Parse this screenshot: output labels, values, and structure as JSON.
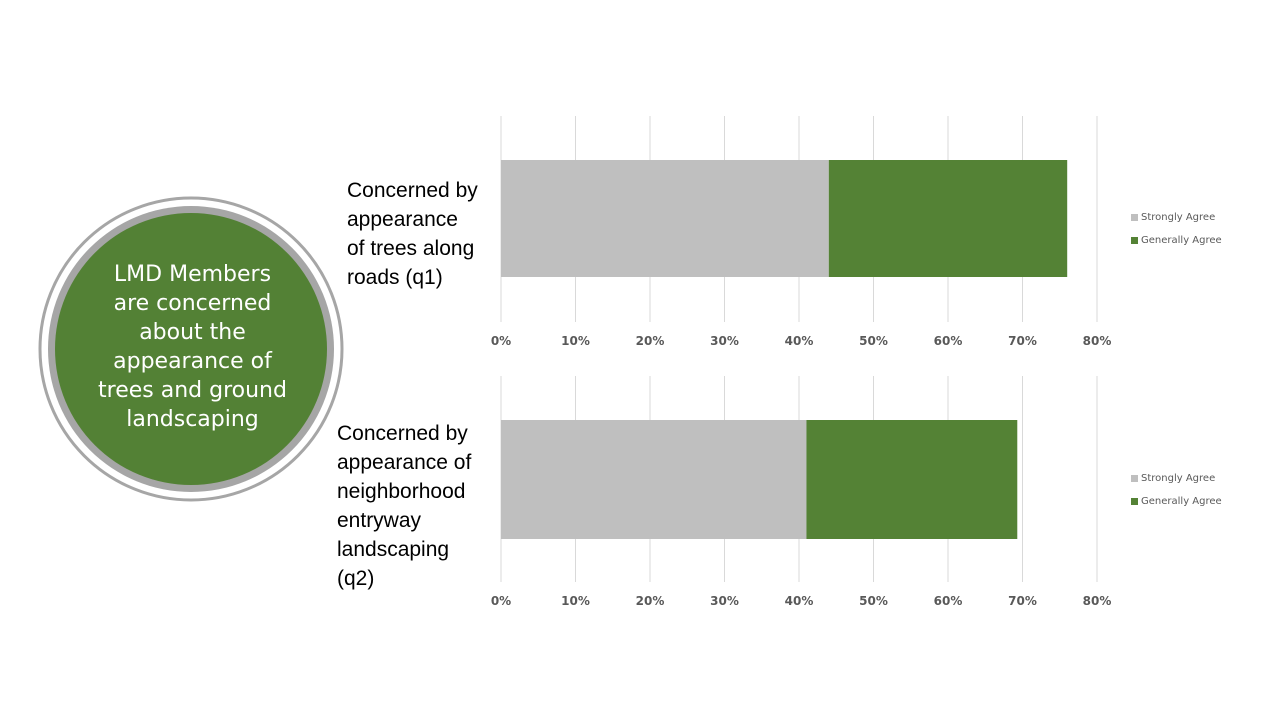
{
  "summary": {
    "text": "LMD Members\nare concerned\nabout the\nappearance of\ntrees and ground\nlandscaping"
  },
  "colors": {
    "circle_fill": "#538135",
    "circle_ring": "#a6a6a6",
    "strongly": "#bfbfbf",
    "generally": "#548235",
    "grid": "#d9d9d9"
  },
  "chart_data": [
    {
      "type": "bar",
      "orientation": "horizontal",
      "stacked": true,
      "category_label": "Concerned by\nappearance\nof trees along\nroads (q1)",
      "series": [
        {
          "name": "Strongly Agree",
          "values": [
            44
          ]
        },
        {
          "name": "Generally Agree",
          "values": [
            32
          ]
        }
      ],
      "xlim": [
        0,
        80
      ],
      "ticks": [
        "0%",
        "10%",
        "20%",
        "30%",
        "40%",
        "50%",
        "60%",
        "70%",
        "80%"
      ],
      "grid": true,
      "legend": "right"
    },
    {
      "type": "bar",
      "orientation": "horizontal",
      "stacked": true,
      "category_label": "Concerned by\nappearance of\nneighborhood\nentryway\nlandscaping\n(q2)",
      "series": [
        {
          "name": "Strongly Agree",
          "values": [
            41
          ]
        },
        {
          "name": "Generally Agree",
          "values": [
            28.3
          ]
        }
      ],
      "xlim": [
        0,
        80
      ],
      "ticks": [
        "0%",
        "10%",
        "20%",
        "30%",
        "40%",
        "50%",
        "60%",
        "70%",
        "80%"
      ],
      "grid": true,
      "legend": "right"
    }
  ]
}
